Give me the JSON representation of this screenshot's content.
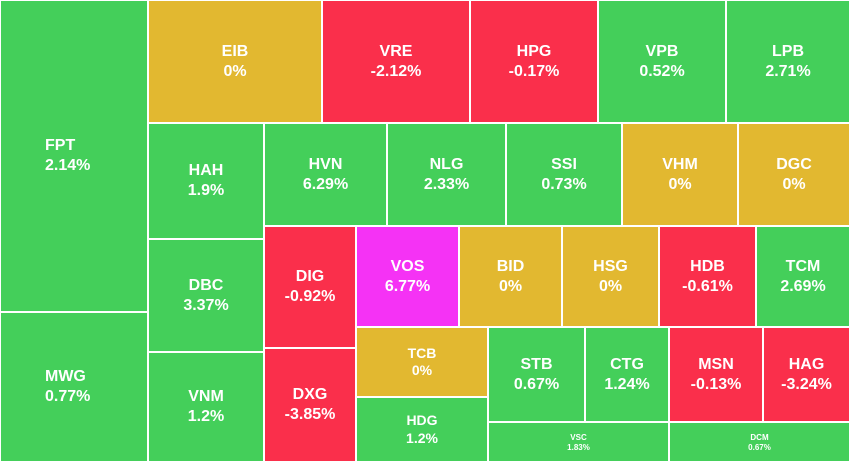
{
  "chart_data": {
    "type": "treemap",
    "colors": {
      "up": "#44cf5a",
      "down": "#fa2f4b",
      "flat": "#e2b830",
      "ceiling": "#f532f5"
    },
    "items": [
      {
        "ticker": "FPT",
        "change": "2.14%",
        "value": 2.14
      },
      {
        "ticker": "MWG",
        "change": "0.77%",
        "value": 0.77
      },
      {
        "ticker": "EIB",
        "change": "0%",
        "value": 0
      },
      {
        "ticker": "VRE",
        "change": "-2.12%",
        "value": -2.12
      },
      {
        "ticker": "HPG",
        "change": "-0.17%",
        "value": -0.17
      },
      {
        "ticker": "VPB",
        "change": "0.52%",
        "value": 0.52
      },
      {
        "ticker": "LPB",
        "change": "2.71%",
        "value": 2.71
      },
      {
        "ticker": "HAH",
        "change": "1.9%",
        "value": 1.9
      },
      {
        "ticker": "HVN",
        "change": "6.29%",
        "value": 6.29
      },
      {
        "ticker": "NLG",
        "change": "2.33%",
        "value": 2.33
      },
      {
        "ticker": "SSI",
        "change": "0.73%",
        "value": 0.73
      },
      {
        "ticker": "VHM",
        "change": "0%",
        "value": 0
      },
      {
        "ticker": "DGC",
        "change": "0%",
        "value": 0
      },
      {
        "ticker": "DBC",
        "change": "3.37%",
        "value": 3.37
      },
      {
        "ticker": "VNM",
        "change": "1.2%",
        "value": 1.2
      },
      {
        "ticker": "DIG",
        "change": "-0.92%",
        "value": -0.92
      },
      {
        "ticker": "DXG",
        "change": "-3.85%",
        "value": -3.85
      },
      {
        "ticker": "VOS",
        "change": "6.77%",
        "value": 6.77
      },
      {
        "ticker": "BID",
        "change": "0%",
        "value": 0
      },
      {
        "ticker": "HSG",
        "change": "0%",
        "value": 0
      },
      {
        "ticker": "HDB",
        "change": "-0.61%",
        "value": -0.61
      },
      {
        "ticker": "TCM",
        "change": "2.69%",
        "value": 2.69
      },
      {
        "ticker": "TCB",
        "change": "0%",
        "value": 0
      },
      {
        "ticker": "HDG",
        "change": "1.2%",
        "value": 1.2
      },
      {
        "ticker": "STB",
        "change": "0.67%",
        "value": 0.67
      },
      {
        "ticker": "CTG",
        "change": "1.24%",
        "value": 1.24
      },
      {
        "ticker": "MSN",
        "change": "-0.13%",
        "value": -0.13
      },
      {
        "ticker": "HAG",
        "change": "-3.24%",
        "value": -3.24
      },
      {
        "ticker": "VSC",
        "change": "1.83%",
        "value": 1.83
      },
      {
        "ticker": "DCM",
        "change": "0.67%",
        "value": 0.67
      }
    ]
  }
}
